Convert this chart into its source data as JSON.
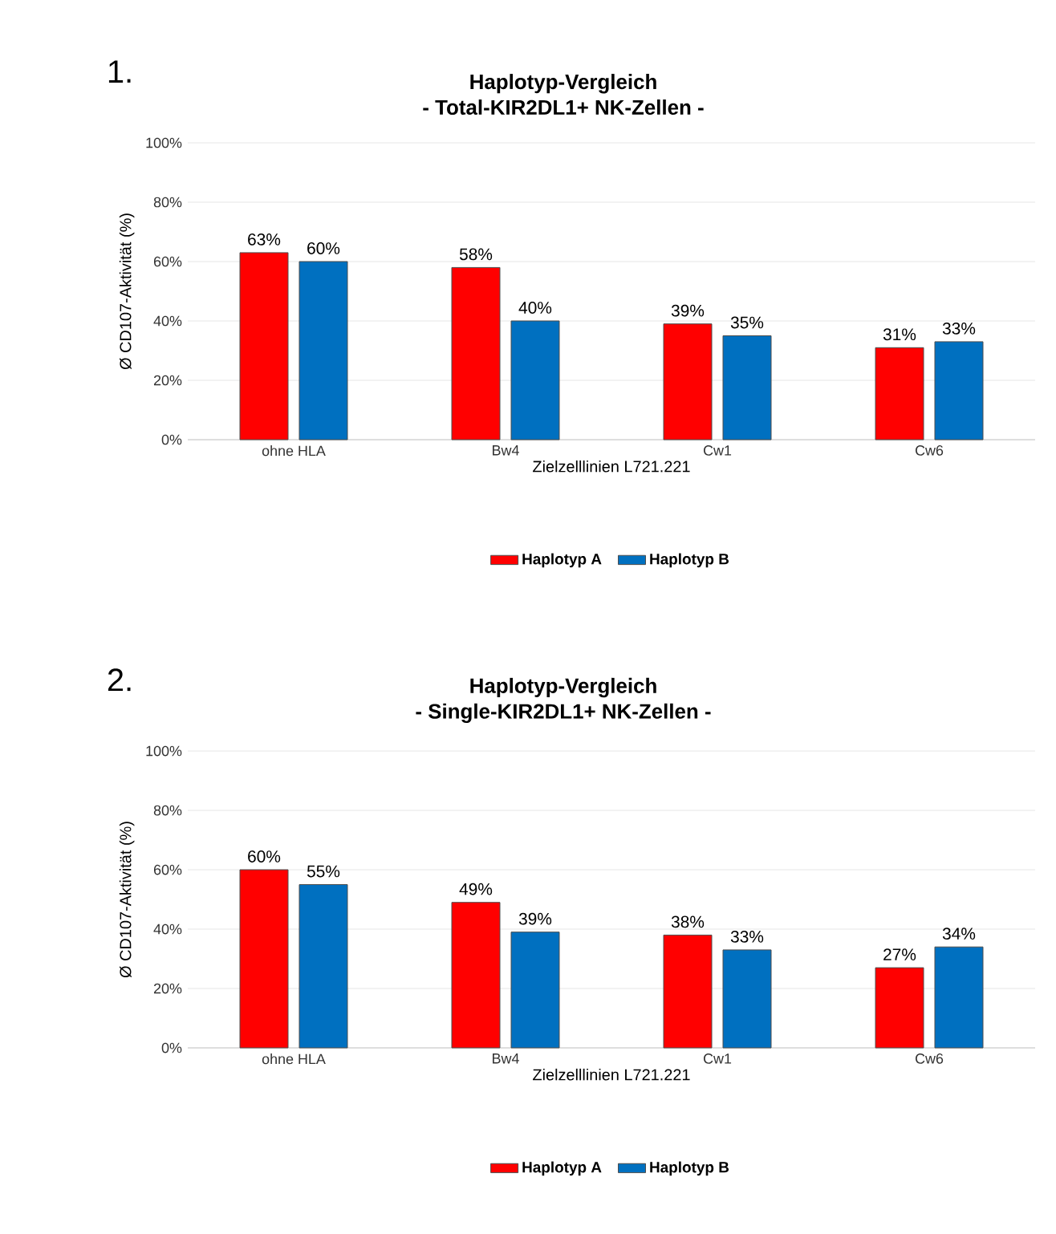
{
  "chart_data": [
    {
      "type": "bar",
      "title": "Haplotyp-Vergleich",
      "subtitle": "- Total-KIR2DL1+ NK-Zellen -",
      "annotations": [
        "1."
      ],
      "xlabel": "Zielzelllinien  L721.221",
      "ylabel": "Ø  CD107-Aktivität  (%)",
      "categories": [
        "ohne HLA",
        "Bw4",
        "Cw1",
        "Cw6"
      ],
      "series": [
        {
          "name": "Haplotyp A",
          "color": "#ff0000",
          "values": [
            63,
            58,
            39,
            31
          ],
          "value_labels": [
            "63%",
            "58%",
            "39%",
            "31%"
          ]
        },
        {
          "name": "Haplotyp B",
          "color": "#0070c0",
          "values": [
            60,
            40,
            35,
            33
          ],
          "value_labels": [
            "60%",
            "40%",
            "35%",
            "33%"
          ]
        }
      ],
      "ylim": [
        0,
        100
      ],
      "yticks": [
        {
          "value": 0,
          "label": "0%"
        },
        {
          "value": 20,
          "label": "20%"
        },
        {
          "value": 40,
          "label": "40%"
        },
        {
          "value": 60,
          "label": "60%"
        },
        {
          "value": 80,
          "label": "80%"
        },
        {
          "value": 100,
          "label": "100%"
        }
      ],
      "grid": "y",
      "legend": "bottom"
    },
    {
      "type": "bar",
      "title": "Haplotyp-Vergleich",
      "subtitle": "- Single-KIR2DL1+ NK-Zellen -",
      "annotations": [
        "2."
      ],
      "xlabel": "Zielzelllinien  L721.221",
      "ylabel": "Ø  CD107-Aktivität  (%)",
      "categories": [
        "ohne HLA",
        "Bw4",
        "Cw1",
        "Cw6"
      ],
      "series": [
        {
          "name": "Haplotyp A",
          "color": "#ff0000",
          "values": [
            60,
            49,
            38,
            27
          ],
          "value_labels": [
            "60%",
            "49%",
            "38%",
            "27%"
          ]
        },
        {
          "name": "Haplotyp B",
          "color": "#0070c0",
          "values": [
            55,
            39,
            33,
            34
          ],
          "value_labels": [
            "55%",
            "39%",
            "33%",
            "34%"
          ]
        }
      ],
      "ylim": [
        0,
        100
      ],
      "yticks": [
        {
          "value": 0,
          "label": "0%"
        },
        {
          "value": 20,
          "label": "20%"
        },
        {
          "value": 40,
          "label": "40%"
        },
        {
          "value": 60,
          "label": "60%"
        },
        {
          "value": 80,
          "label": "80%"
        },
        {
          "value": 100,
          "label": "100%"
        }
      ],
      "grid": "y",
      "legend": "bottom"
    }
  ]
}
